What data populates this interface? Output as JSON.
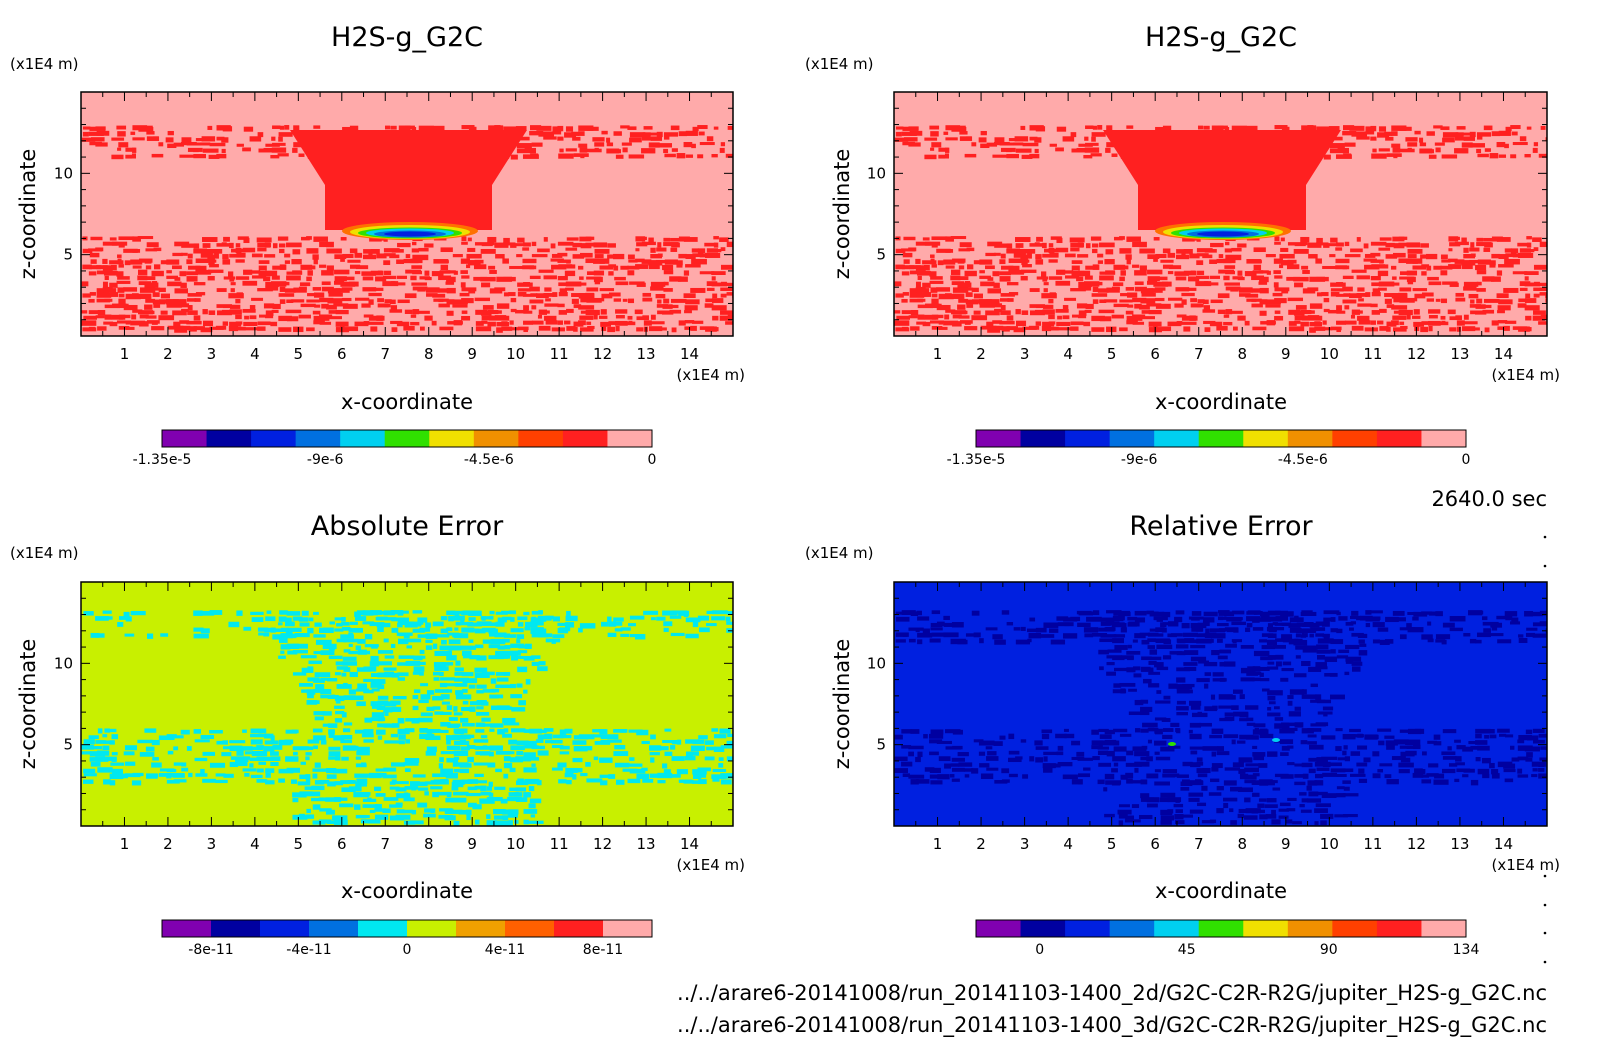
{
  "time_label": "2640.0 sec",
  "footer": {
    "file1": "../../arare6-20141008/run_20141103-1400_2d/G2C-C2R-R2G/jupiter_H2S-g_G2C.nc",
    "file2": "../../arare6-20141008/run_20141103-1400_3d/G2C-C2R-R2G/jupiter_H2S-g_G2C.nc"
  },
  "chart_data": [
    {
      "type": "heatmap",
      "title": "H2S-g_G2C",
      "xlabel": "x-coordinate",
      "ylabel": "z-coordinate",
      "x_unit": "(x1E4 m)",
      "y_unit": "(x1E4 m)",
      "xlim": [
        0,
        15
      ],
      "ylim": [
        0,
        15
      ],
      "x_ticks": [
        "1",
        "2",
        "3",
        "4",
        "5",
        "6",
        "7",
        "8",
        "9",
        "10",
        "11",
        "12",
        "13",
        "14"
      ],
      "y_ticks": [
        "5",
        "10"
      ],
      "colorbar": {
        "colors": [
          "#8000b0",
          "#0000a0",
          "#0020e0",
          "#0070e0",
          "#00d0f0",
          "#30e000",
          "#f0e000",
          "#f09000",
          "#ff4000",
          "#ff2020",
          "#ffaaaa"
        ],
        "labels": [
          "-1.35e-5",
          "-9e-6",
          "-4.5e-6",
          "0"
        ]
      }
    },
    {
      "type": "heatmap",
      "title": "H2S-g_G2C",
      "xlabel": "x-coordinate",
      "ylabel": "z-coordinate",
      "x_unit": "(x1E4 m)",
      "y_unit": "(x1E4 m)",
      "xlim": [
        0,
        15
      ],
      "ylim": [
        0,
        15
      ],
      "x_ticks": [
        "1",
        "2",
        "3",
        "4",
        "5",
        "6",
        "7",
        "8",
        "9",
        "10",
        "11",
        "12",
        "13",
        "14"
      ],
      "y_ticks": [
        "5",
        "10"
      ],
      "colorbar": {
        "colors": [
          "#8000b0",
          "#0000a0",
          "#0020e0",
          "#0070e0",
          "#00d0f0",
          "#30e000",
          "#f0e000",
          "#f09000",
          "#ff4000",
          "#ff2020",
          "#ffaaaa"
        ],
        "labels": [
          "-1.35e-5",
          "-9e-6",
          "-4.5e-6",
          "0"
        ]
      }
    },
    {
      "type": "heatmap",
      "title": "Absolute Error",
      "xlabel": "x-coordinate",
      "ylabel": "z-coordinate",
      "x_unit": "(x1E4 m)",
      "y_unit": "(x1E4 m)",
      "xlim": [
        0,
        15
      ],
      "ylim": [
        0,
        15
      ],
      "x_ticks": [
        "1",
        "2",
        "3",
        "4",
        "5",
        "6",
        "7",
        "8",
        "9",
        "10",
        "11",
        "12",
        "13",
        "14"
      ],
      "y_ticks": [
        "5",
        "10"
      ],
      "colorbar": {
        "colors": [
          "#8000b0",
          "#0000a0",
          "#0020e0",
          "#0070e0",
          "#00e8f0",
          "#c8f000",
          "#f0a000",
          "#ff6000",
          "#ff2020",
          "#ffaaaa"
        ],
        "labels": [
          "-8e-11",
          "-4e-11",
          "0",
          "4e-11",
          "8e-11"
        ]
      }
    },
    {
      "type": "heatmap",
      "title": "Relative Error",
      "xlabel": "x-coordinate",
      "ylabel": "z-coordinate",
      "x_unit": "(x1E4 m)",
      "y_unit": "(x1E4 m)",
      "xlim": [
        0,
        15
      ],
      "ylim": [
        0,
        15
      ],
      "x_ticks": [
        "1",
        "2",
        "3",
        "4",
        "5",
        "6",
        "7",
        "8",
        "9",
        "10",
        "11",
        "12",
        "13",
        "14"
      ],
      "y_ticks": [
        "5",
        "10"
      ],
      "colorbar": {
        "colors": [
          "#8000b0",
          "#0000a0",
          "#0020e0",
          "#0070e0",
          "#00d0f0",
          "#30e000",
          "#f0e000",
          "#f09000",
          "#ff4000",
          "#ff2020",
          "#ffaaaa"
        ],
        "labels": [
          "0",
          "45",
          "90",
          "134"
        ]
      }
    }
  ]
}
